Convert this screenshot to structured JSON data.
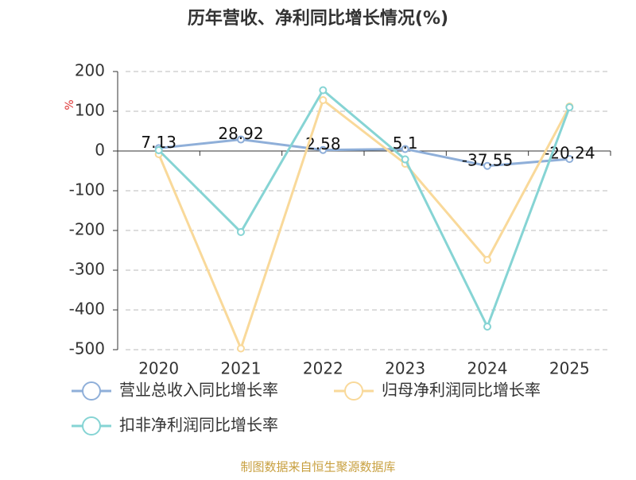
{
  "chart_data": {
    "type": "line",
    "title": "历年营收、净利同比增长情况(%)",
    "y_label": "%",
    "categories": [
      "2020",
      "2021",
      "2022",
      "2023",
      "2024",
      "2025"
    ],
    "series": [
      {
        "name": "营业总收入同比增长率",
        "color": "#8fafd9",
        "values": [
          7.13,
          28.92,
          2.58,
          5.1,
          -37.55,
          -20.24
        ],
        "value_labels": [
          "7.13",
          "28.92",
          "2.58",
          "5.1",
          "-37.55",
          "-20.24"
        ]
      },
      {
        "name": "归母净利润同比增长率",
        "color": "#f9d99a",
        "values": [
          -8,
          -497,
          128,
          -32,
          -274,
          112
        ]
      },
      {
        "name": "扣非净利润同比增长率",
        "color": "#86d4d4",
        "values": [
          2,
          -204,
          153,
          -21,
          -442,
          110
        ]
      }
    ],
    "ylim": [
      -500,
      200
    ],
    "yticks": [
      -500,
      -400,
      -300,
      -200,
      -100,
      0,
      100,
      200
    ],
    "grid": true,
    "source": "制图数据来自恒生聚源数据库"
  }
}
